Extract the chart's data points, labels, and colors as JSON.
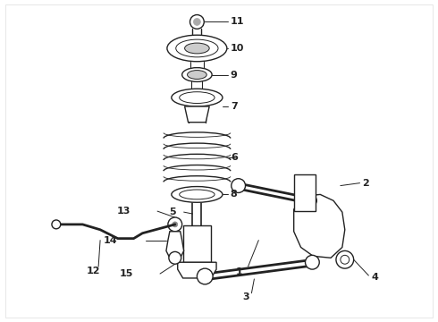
{
  "bg_color": "#ffffff",
  "line_color": "#222222",
  "label_fontsize": 8,
  "label_fontweight": "bold",
  "figsize": [
    4.9,
    3.6
  ],
  "dpi": 100
}
